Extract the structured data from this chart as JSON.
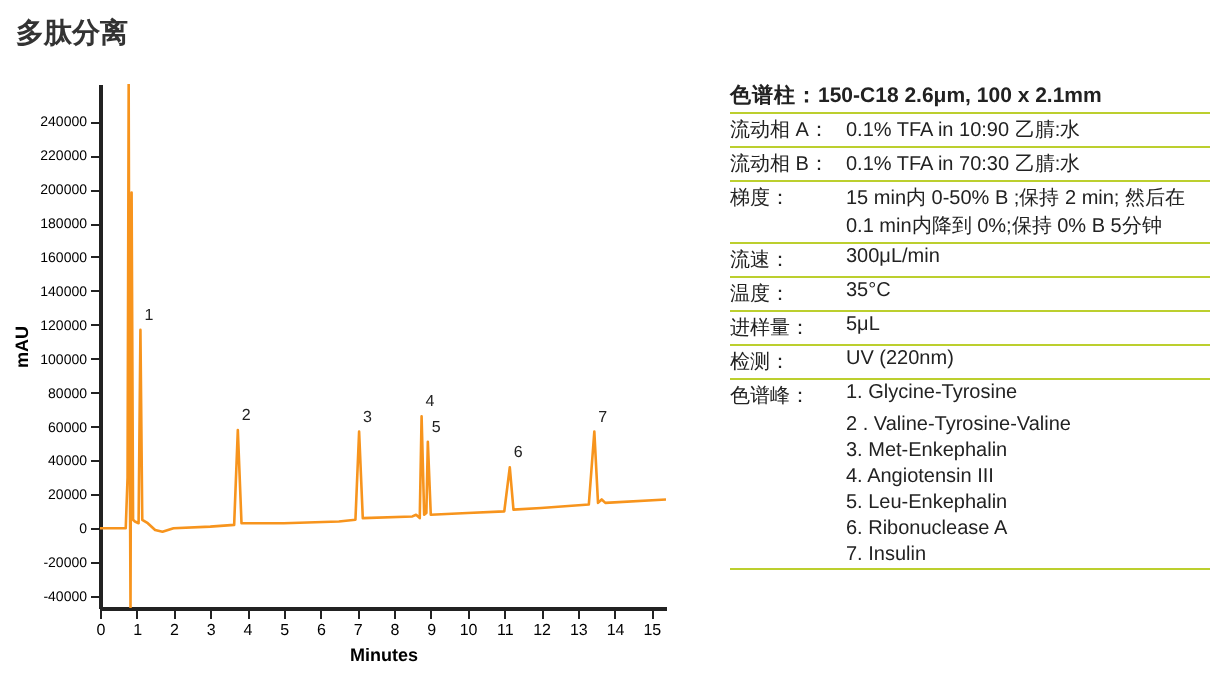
{
  "chart_data": {
    "type": "line",
    "title": "多肽分离",
    "xlabel": "Minutes",
    "ylabel": "mAU",
    "xlim": [
      0,
      15.4
    ],
    "xticks": [
      0,
      1,
      2,
      3,
      4,
      5,
      6,
      7,
      8,
      9,
      10,
      11,
      12,
      13,
      14,
      15
    ],
    "ylim": [
      -47000,
      262000
    ],
    "yticks": [
      -40000,
      -20000,
      0,
      20000,
      40000,
      60000,
      80000,
      100000,
      120000,
      140000,
      160000,
      180000,
      200000,
      220000,
      240000
    ],
    "grid": false,
    "line_style": "solid",
    "series": [
      {
        "color": "#f7941d",
        "x": [
          0,
          0.7,
          0.75,
          0.78,
          0.8,
          0.83,
          0.86,
          0.9,
          0.95,
          1.05,
          1.1,
          1.15,
          1.3,
          1.5,
          1.7,
          2.0,
          3.0,
          3.65,
          3.75,
          3.85,
          5,
          6.5,
          6.95,
          7.05,
          7.15,
          8.5,
          8.6,
          8.7,
          8.75,
          8.82,
          8.88,
          8.92,
          9.0,
          10,
          11.0,
          11.15,
          11.25,
          12,
          13.3,
          13.45,
          13.55,
          13.65,
          13.75,
          15.4
        ],
        "values": [
          0,
          0,
          30000,
          262000,
          100000,
          -47000,
          198000,
          5000,
          4000,
          3000,
          117000,
          5000,
          3000,
          -1000,
          -2000,
          0,
          1000,
          2000,
          58000,
          3000,
          3000,
          4000,
          5000,
          57000,
          6000,
          7000,
          8000,
          6000,
          66000,
          8000,
          9000,
          51000,
          8000,
          9000,
          10000,
          36000,
          11000,
          12000,
          14000,
          57000,
          15000,
          17000,
          15000,
          17000
        ]
      }
    ],
    "annotations": [
      {
        "text": "1",
        "x": 1.1,
        "y": 117000
      },
      {
        "text": "2",
        "x": 3.75,
        "y": 58000
      },
      {
        "text": "3",
        "x": 7.05,
        "y": 57000
      },
      {
        "text": "4",
        "x": 8.75,
        "y": 66000
      },
      {
        "text": "5",
        "x": 8.92,
        "y": 51000
      },
      {
        "text": "6",
        "x": 11.15,
        "y": 36000
      },
      {
        "text": "7",
        "x": 13.45,
        "y": 57000
      },
      "色谱柱：150-C18 2.6μm, 100 x 2.1mm",
      "流动相 A： 0.1% TFA in 10:90 乙腈:水",
      "流动相 B： 0.1% TFA in 70:30 乙腈:水",
      "梯度： 15 min内 0-50% B ;保持 2 min; 然后在 0.1 min内降到 0%;保持 0% B 5分钟",
      "流速： 300μL/min",
      "温度： 35°C",
      "进样量： 5μL",
      "检测： UV (220nm)",
      "色谱峰： 1. Glycine-Tyrosine",
      "2 . Valine-Tyrosine-Valine",
      "3. Met-Enkephalin",
      "4. Angiotensin III",
      "5. Leu-Enkephalin",
      "6. Ribonuclease A",
      "7. Insulin"
    ]
  }
}
